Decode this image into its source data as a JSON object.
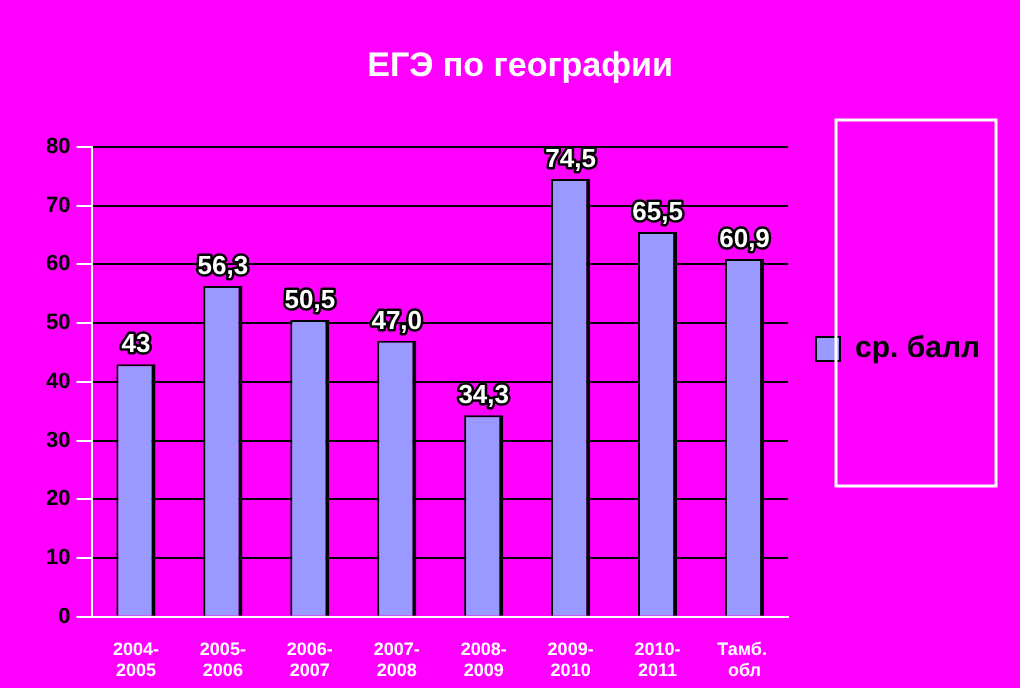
{
  "chart_data": {
    "type": "bar",
    "title": "ЕГЭ по географии",
    "categories": [
      "2004-2005",
      "2005-2006",
      "2006-2007",
      "2007-2008",
      "2008-2009",
      "2009-2010",
      "2010-2011",
      "Тамб. обл"
    ],
    "series": [
      {
        "name": "ср. балл",
        "color": "#9999ff",
        "values": [
          43,
          56.3,
          50.5,
          47.0,
          34.3,
          74.5,
          65.5,
          60.9
        ],
        "value_labels": [
          "43",
          "56,3",
          "50,5",
          "47,0",
          "34,3",
          "74,5",
          "65,5",
          "60,9"
        ]
      }
    ],
    "ylim": [
      0,
      80
    ],
    "yticks": [
      0,
      10,
      20,
      30,
      40,
      50,
      60,
      70,
      80
    ],
    "grid": "y",
    "legend": "right"
  }
}
